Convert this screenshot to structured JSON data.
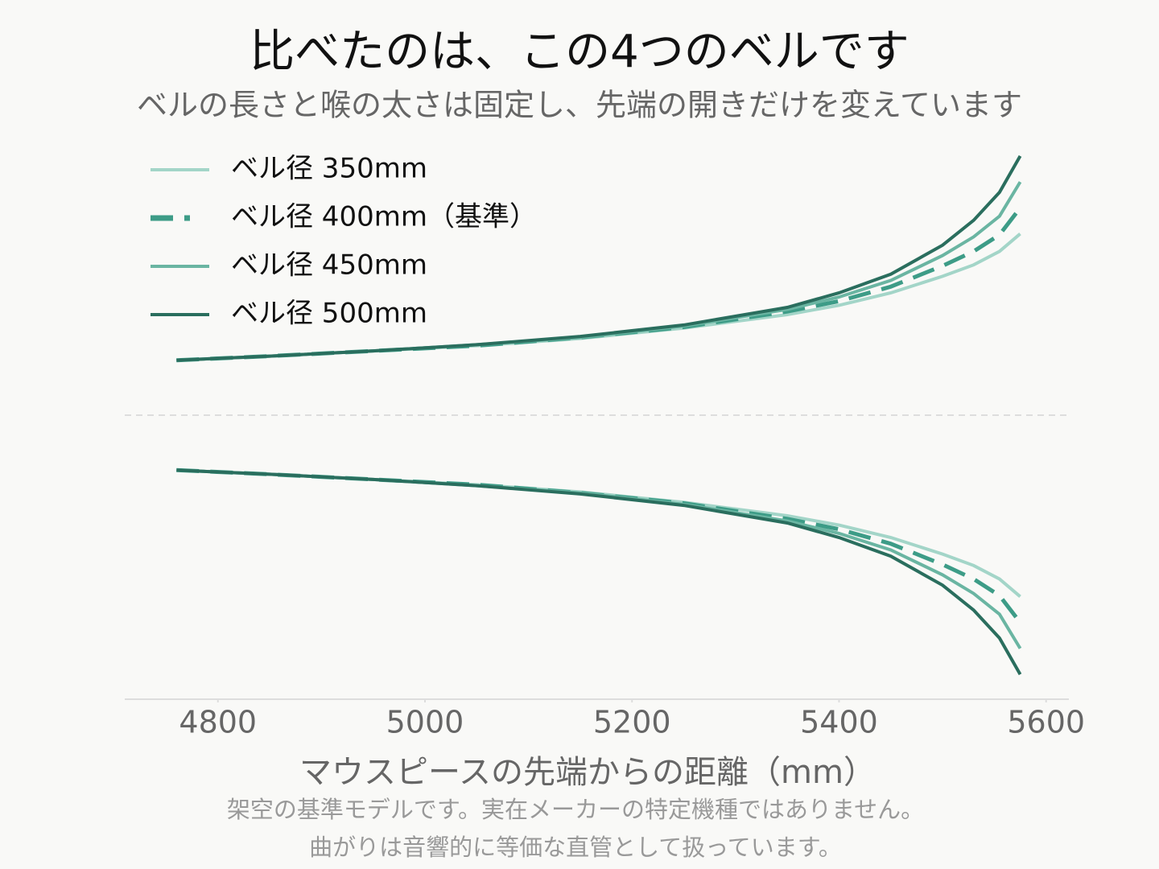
{
  "chart_data": {
    "type": "line",
    "title": "比べたのは、この4つのベルです",
    "subtitle": "ベルの長さと喉の太さは固定し、先端の開きだけを変えています",
    "xlabel": "マウスピースの先端からの距離（mm）",
    "notes": [
      "架空の基準モデルです。実在メーカーの特定機種ではありません。",
      "曲がりは音響的に等価な直管として扱っています。"
    ],
    "mirrored": true,
    "x": [
      4760,
      4850,
      4950,
      5050,
      5150,
      5250,
      5350,
      5400,
      5450,
      5500,
      5530,
      5555,
      5575
    ],
    "series": [
      {
        "name": "ベル径 350mm",
        "color": "#a3d5c8",
        "linestyle": "solid",
        "values": [
          53,
          57,
          62,
          67,
          74,
          84,
          97,
          106,
          118,
          134,
          145,
          158,
          175
        ]
      },
      {
        "name": "ベル径 400mm（基準）",
        "color": "#3d9c87",
        "linestyle": "dashed",
        "values": [
          53,
          57,
          62,
          67,
          75,
          85,
          100,
          110,
          124,
          144,
          158,
          174,
          200
        ]
      },
      {
        "name": "ベル径 450mm",
        "color": "#6ab5a2",
        "linestyle": "solid",
        "values": [
          53,
          57,
          62,
          68,
          75,
          86,
          102,
          114,
          130,
          154,
          172,
          192,
          225
        ]
      },
      {
        "name": "ベル径 500mm",
        "color": "#2a6e5e",
        "linestyle": "solid",
        "values": [
          53,
          57,
          62,
          68,
          76,
          87,
          104,
          118,
          136,
          164,
          188,
          215,
          250
        ]
      }
    ],
    "xlim": [
      4710,
      5622
    ],
    "ylim": [
      -274,
      274
    ],
    "xticks": [
      4800,
      5000,
      5200,
      5400,
      5600
    ],
    "legend": "upper left"
  }
}
